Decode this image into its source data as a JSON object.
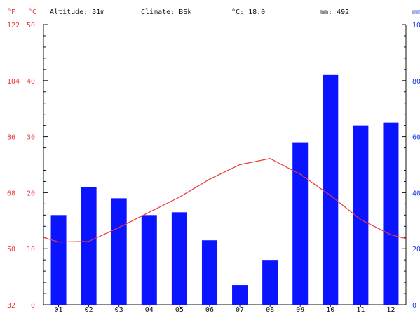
{
  "header": {
    "fahrenheit_unit": "°F",
    "celsius_unit": "°C",
    "altitude": "Altitude: 31m",
    "climate": "Climate: BSk",
    "avg_temp": "°C: 18.0",
    "precip_total": "mm: 492",
    "mm_unit": "mm"
  },
  "colors": {
    "bars": "#0a14ff",
    "temp_line": "#e83a3a",
    "left_axis_text": "#e83a3a",
    "right_axis_text": "#1f3fe0"
  },
  "chart_data": {
    "type": "bar",
    "categories": [
      "01",
      "02",
      "03",
      "04",
      "05",
      "06",
      "07",
      "08",
      "09",
      "10",
      "11",
      "12"
    ],
    "precipitation_mm": [
      32,
      42,
      38,
      32,
      33,
      23,
      7,
      16,
      58,
      82,
      64,
      65
    ],
    "temperature_c": [
      12.0,
      11.2,
      11.3,
      13.8,
      16.5,
      19.2,
      22.4,
      25.0,
      26.1,
      23.3,
      19.5,
      15.2,
      12.5,
      11.8
    ],
    "temperature_c_note": "",
    "temperature_monthly_c": [
      11.2,
      11.3,
      13.8,
      16.5,
      19.2,
      22.4,
      25.0,
      26.1,
      23.3,
      19.5,
      15.2,
      12.5
    ],
    "temperature_edge_c": [
      12.0,
      11.8
    ],
    "ylim_celsius": [
      0,
      50
    ],
    "ylim_mm": [
      0,
      100
    ],
    "left_ticks_c": [
      "0",
      "10",
      "20",
      "30",
      "40",
      "50"
    ],
    "left_ticks_f": [
      "32",
      "50",
      "68",
      "86",
      "104",
      "122"
    ],
    "right_ticks_mm": [
      "0",
      "20",
      "40",
      "60",
      "80",
      "100"
    ],
    "grid": false
  }
}
